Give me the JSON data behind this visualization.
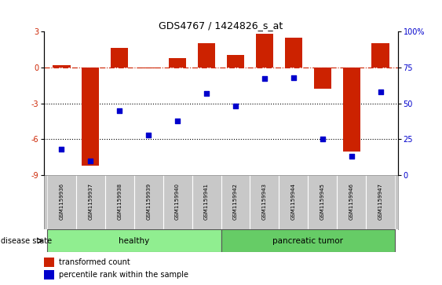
{
  "title": "GDS4767 / 1424826_s_at",
  "samples": [
    "GSM1159936",
    "GSM1159937",
    "GSM1159938",
    "GSM1159939",
    "GSM1159940",
    "GSM1159941",
    "GSM1159942",
    "GSM1159943",
    "GSM1159944",
    "GSM1159945",
    "GSM1159946",
    "GSM1159947"
  ],
  "transformed_count": [
    0.15,
    -8.2,
    1.6,
    -0.05,
    0.8,
    2.0,
    1.0,
    2.8,
    2.5,
    -1.8,
    -7.0,
    2.0
  ],
  "percentile_rank": [
    18,
    10,
    45,
    28,
    38,
    57,
    48,
    67,
    68,
    25,
    13,
    58
  ],
  "disease_groups": [
    {
      "label": "healthy",
      "start": 0,
      "end": 5,
      "color": "#90EE90"
    },
    {
      "label": "pancreatic tumor",
      "start": 6,
      "end": 11,
      "color": "#66CC66"
    }
  ],
  "bar_color": "#CC2200",
  "dot_color": "#0000CC",
  "ylim_left": [
    -9,
    3
  ],
  "ylim_right": [
    0,
    100
  ],
  "yticks_left": [
    -9,
    -6,
    -3,
    0,
    3
  ],
  "yticks_right": [
    0,
    25,
    50,
    75,
    100
  ],
  "ytick_labels_right": [
    "0",
    "25",
    "50",
    "75",
    "100%"
  ],
  "hline_y": 0,
  "dotted_lines": [
    -3,
    -6
  ],
  "background_color": "#ffffff",
  "bar_width": 0.6,
  "label_bg_color": "#C8C8C8",
  "healthy_color": "#90EE90",
  "tumor_color": "#66CC66"
}
